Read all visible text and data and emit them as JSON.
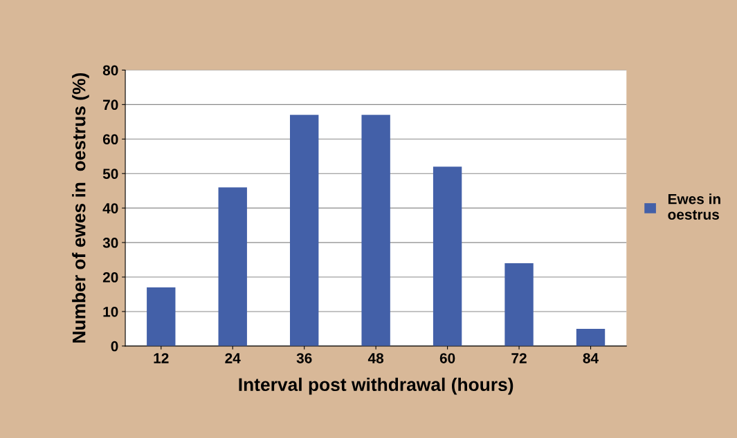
{
  "chart_data": {
    "type": "bar",
    "xlabel": "Interval post withdrawal (hours)",
    "ylabel": "Number of ewes in  oestrus (%)",
    "categories": [
      "12",
      "24",
      "36",
      "48",
      "60",
      "72",
      "84"
    ],
    "series": [
      {
        "name": "Ewes in\noestrus",
        "color": "#4360a8",
        "values": [
          17,
          46,
          67,
          67,
          52,
          24,
          5
        ]
      }
    ],
    "ylim": [
      0,
      80
    ],
    "yticks": [
      0,
      10,
      20,
      30,
      40,
      50,
      60,
      70,
      80
    ],
    "grid": "y",
    "legend": "right"
  }
}
